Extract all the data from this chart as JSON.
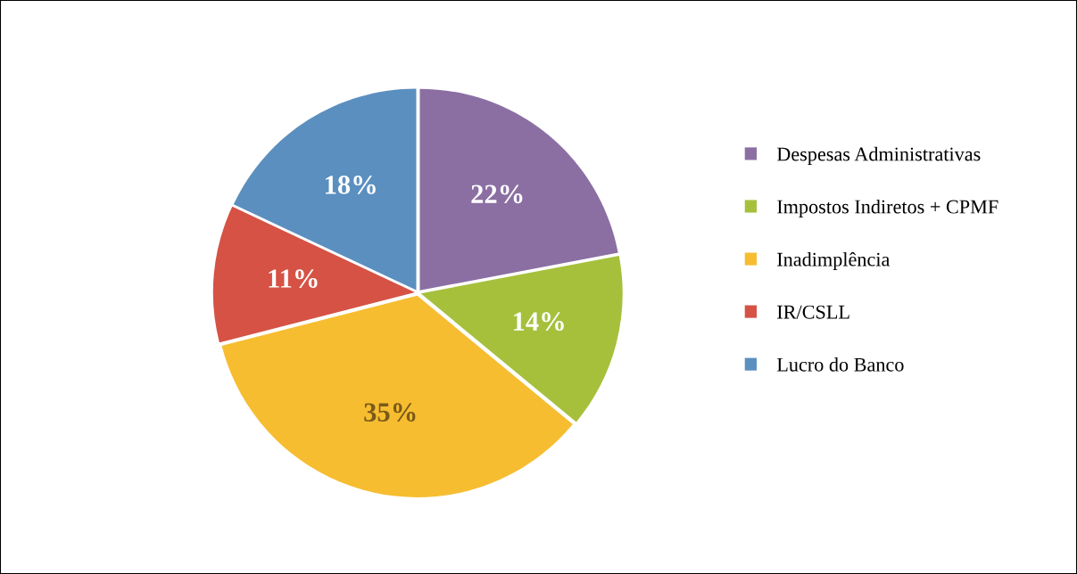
{
  "chart_data": {
    "type": "pie",
    "categories": [
      "Despesas Administrativas",
      "Impostos Indiretos + CPMF",
      "Inadimplência",
      "IR/CSLL",
      "Lucro do Banco"
    ],
    "values": [
      22,
      14,
      35,
      11,
      18
    ],
    "colors": [
      "#8b6fa3",
      "#a6c03c",
      "#f6bd30",
      "#d55245",
      "#5b8fbf"
    ],
    "value_labels": [
      "22%",
      "14%",
      "35%",
      "11%",
      "18%"
    ],
    "legend": "right"
  }
}
